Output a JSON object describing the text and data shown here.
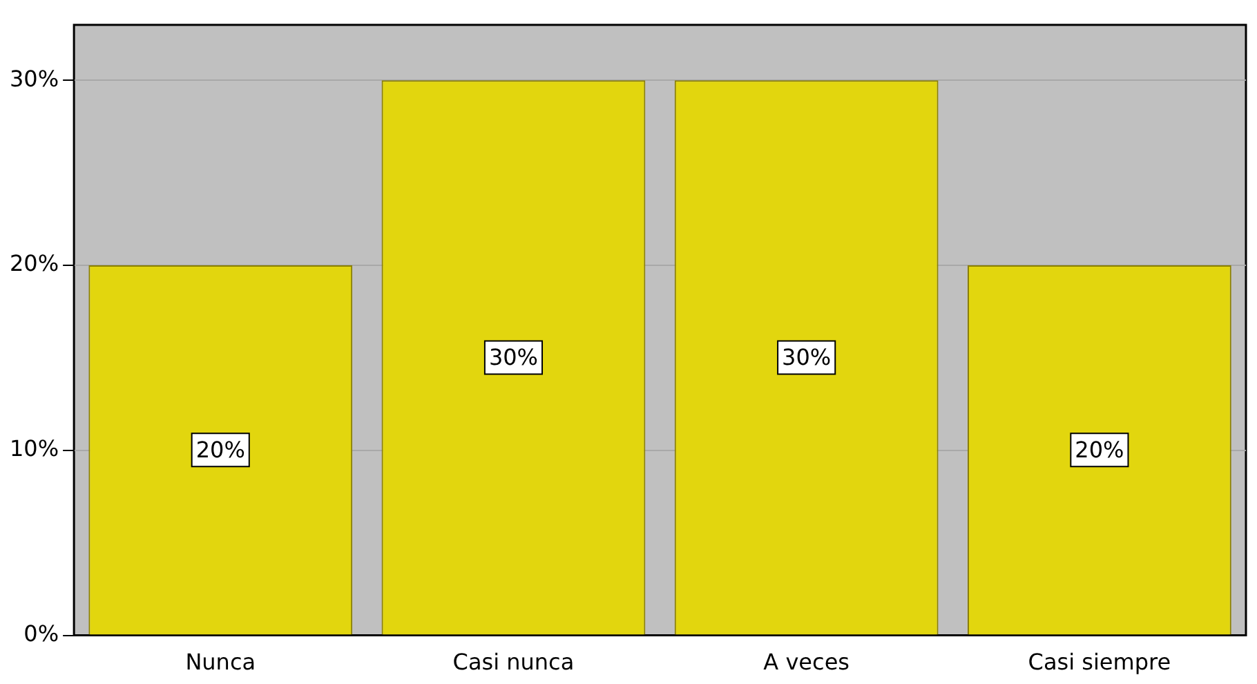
{
  "chart_data": {
    "type": "bar",
    "categories": [
      "Nunca",
      "Casi nunca",
      "A veces",
      "Casi siempre"
    ],
    "values": [
      20,
      30,
      30,
      20
    ],
    "value_labels": [
      "20%",
      "30%",
      "30%",
      "20%"
    ],
    "color": "#e2d60e",
    "ylim": [
      0,
      33
    ],
    "yticks": [
      {
        "value": 0,
        "label": "0%"
      },
      {
        "value": 10,
        "label": "10%"
      },
      {
        "value": 20,
        "label": "20%"
      },
      {
        "value": 30,
        "label": "30%"
      }
    ],
    "grid": "y",
    "legend": false
  }
}
